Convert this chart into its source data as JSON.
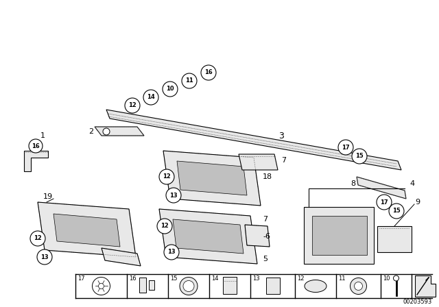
{
  "bg_color": "#ffffff",
  "line_color": "#000000",
  "fill_light": "#e8e8e8",
  "fill_dark": "#c0c0c0",
  "footer_id": "00203593",
  "figsize": [
    6.4,
    4.48
  ],
  "dpi": 100
}
